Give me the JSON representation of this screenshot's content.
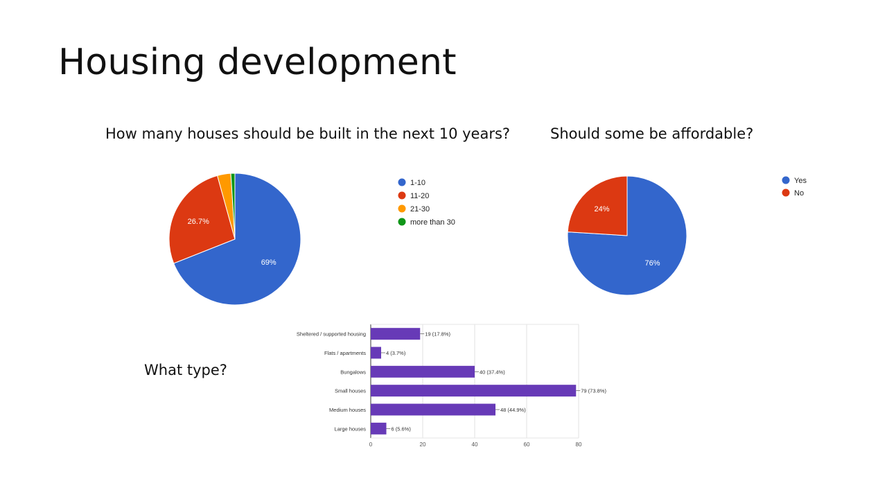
{
  "slide": {
    "title": "Housing development"
  },
  "questions": {
    "q1": "How many houses should be built in the next 10 years?",
    "q2": "Should some be affordable?",
    "q3": "What type?"
  },
  "chart_data": [
    {
      "type": "pie",
      "labels": [
        "1-10",
        "11-20",
        "21-30",
        "more than 30"
      ],
      "values": [
        69,
        26.7,
        3.3,
        1.0
      ],
      "slice_labels": [
        "69%",
        "26.7%",
        "",
        ""
      ],
      "colors": [
        "#3366cc",
        "#dc3912",
        "#ff9900",
        "#109618"
      ],
      "legend_position": "right"
    },
    {
      "type": "pie",
      "labels": [
        "Yes",
        "No"
      ],
      "values": [
        76,
        24
      ],
      "slice_labels": [
        "76%",
        "24%"
      ],
      "colors": [
        "#3366cc",
        "#dc3912"
      ],
      "legend_position": "top-right"
    },
    {
      "type": "bar",
      "orientation": "horizontal",
      "categories": [
        "Sheltered / supported housing",
        "Flats / apartments",
        "Bungalows",
        "Small houses",
        "Medium houses",
        "Large houses"
      ],
      "values": [
        19,
        4,
        40,
        79,
        48,
        6
      ],
      "value_labels": [
        "19 (17.8%)",
        "4 (3.7%)",
        "40 (37.4%)",
        "79 (73.8%)",
        "48 (44.9%)",
        "6 (5.6%)"
      ],
      "xlim": [
        0,
        80
      ],
      "xticks": [
        0,
        20,
        40,
        60,
        80
      ],
      "grid": true,
      "color": "#673ab7"
    }
  ]
}
